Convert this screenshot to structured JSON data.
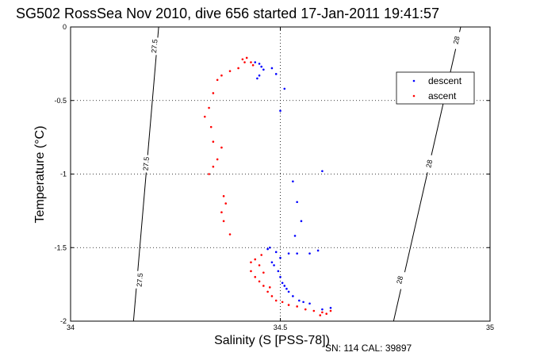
{
  "chart_data": {
    "type": "scatter",
    "title": "SG502 RossSea Nov 2010, dive 656 started 17-Jan-2011 19:41:57",
    "xlabel": "Salinity (S [PSS-78])",
    "ylabel": "Temperature (°C)",
    "xlim": [
      34,
      35
    ],
    "ylim": [
      -2,
      0
    ],
    "x_ticks": [
      "34",
      "34.5",
      "35"
    ],
    "y_ticks": [
      "0",
      "-0.5",
      "-1",
      "-1.5",
      "-2"
    ],
    "grid": "dotted",
    "legend_position": "upper-right",
    "footer": "SN: 114  CAL: 39897",
    "density_contours": [
      {
        "label": "27.5",
        "points": [
          [
            34.21,
            0
          ],
          [
            34.15,
            -2
          ]
        ],
        "label_positions": [
          [
            34.2,
            -0.13
          ],
          [
            34.18,
            -0.93
          ],
          [
            34.165,
            -1.72
          ]
        ]
      },
      {
        "label": "28",
        "points": [
          [
            34.93,
            0
          ],
          [
            34.77,
            -2
          ]
        ],
        "label_positions": [
          [
            34.92,
            -0.09
          ],
          [
            34.855,
            -0.93
          ],
          [
            34.785,
            -1.72
          ]
        ]
      }
    ],
    "series": [
      {
        "name": "descent",
        "color": "#0000ff",
        "points": [
          [
            34.44,
            -0.24
          ],
          [
            34.45,
            -0.25
          ],
          [
            34.455,
            -0.27
          ],
          [
            34.46,
            -0.29
          ],
          [
            34.45,
            -0.33
          ],
          [
            34.445,
            -0.35
          ],
          [
            34.48,
            -0.28
          ],
          [
            34.49,
            -0.32
          ],
          [
            34.5,
            -0.57
          ],
          [
            34.51,
            -0.42
          ],
          [
            34.6,
            -0.98
          ],
          [
            34.53,
            -1.05
          ],
          [
            34.54,
            -1.19
          ],
          [
            34.55,
            -1.32
          ],
          [
            34.535,
            -1.42
          ],
          [
            34.47,
            -1.51
          ],
          [
            34.475,
            -1.5
          ],
          [
            34.49,
            -1.53
          ],
          [
            34.5,
            -1.57
          ],
          [
            34.52,
            -1.54
          ],
          [
            34.54,
            -1.54
          ],
          [
            34.57,
            -1.54
          ],
          [
            34.59,
            -1.52
          ],
          [
            34.48,
            -1.6
          ],
          [
            34.485,
            -1.62
          ],
          [
            34.495,
            -1.66
          ],
          [
            34.5,
            -1.7
          ],
          [
            34.505,
            -1.74
          ],
          [
            34.51,
            -1.76
          ],
          [
            34.515,
            -1.78
          ],
          [
            34.52,
            -1.8
          ],
          [
            34.53,
            -1.83
          ],
          [
            34.545,
            -1.86
          ],
          [
            34.555,
            -1.87
          ],
          [
            34.57,
            -1.88
          ],
          [
            34.6,
            -1.92
          ],
          [
            34.62,
            -1.91
          ]
        ]
      },
      {
        "name": "ascent",
        "color": "#ff0000",
        "points": [
          [
            34.42,
            -0.21
          ],
          [
            34.41,
            -0.22
          ],
          [
            34.415,
            -0.24
          ],
          [
            34.43,
            -0.24
          ],
          [
            34.435,
            -0.26
          ],
          [
            34.4,
            -0.28
          ],
          [
            34.38,
            -0.3
          ],
          [
            34.36,
            -0.33
          ],
          [
            34.35,
            -0.36
          ],
          [
            34.34,
            -0.45
          ],
          [
            34.33,
            -0.55
          ],
          [
            34.32,
            -0.61
          ],
          [
            34.335,
            -0.68
          ],
          [
            34.34,
            -0.78
          ],
          [
            34.36,
            -0.82
          ],
          [
            34.35,
            -0.9
          ],
          [
            34.34,
            -0.95
          ],
          [
            34.33,
            -1.0
          ],
          [
            34.365,
            -1.15
          ],
          [
            34.37,
            -1.2
          ],
          [
            34.36,
            -1.26
          ],
          [
            34.365,
            -1.32
          ],
          [
            34.38,
            -1.41
          ],
          [
            34.43,
            -1.6
          ],
          [
            34.44,
            -1.58
          ],
          [
            34.45,
            -1.62
          ],
          [
            34.43,
            -1.66
          ],
          [
            34.44,
            -1.7
          ],
          [
            34.45,
            -1.73
          ],
          [
            34.46,
            -1.76
          ],
          [
            34.47,
            -1.8
          ],
          [
            34.48,
            -1.83
          ],
          [
            34.49,
            -1.86
          ],
          [
            34.505,
            -1.87
          ],
          [
            34.52,
            -1.89
          ],
          [
            34.54,
            -1.9
          ],
          [
            34.56,
            -1.92
          ],
          [
            34.58,
            -1.93
          ],
          [
            34.6,
            -1.94
          ],
          [
            34.61,
            -1.95
          ],
          [
            34.62,
            -1.93
          ],
          [
            34.595,
            -1.96
          ],
          [
            34.455,
            -1.55
          ],
          [
            34.46,
            -1.67
          ],
          [
            34.475,
            -1.77
          ]
        ]
      }
    ]
  }
}
